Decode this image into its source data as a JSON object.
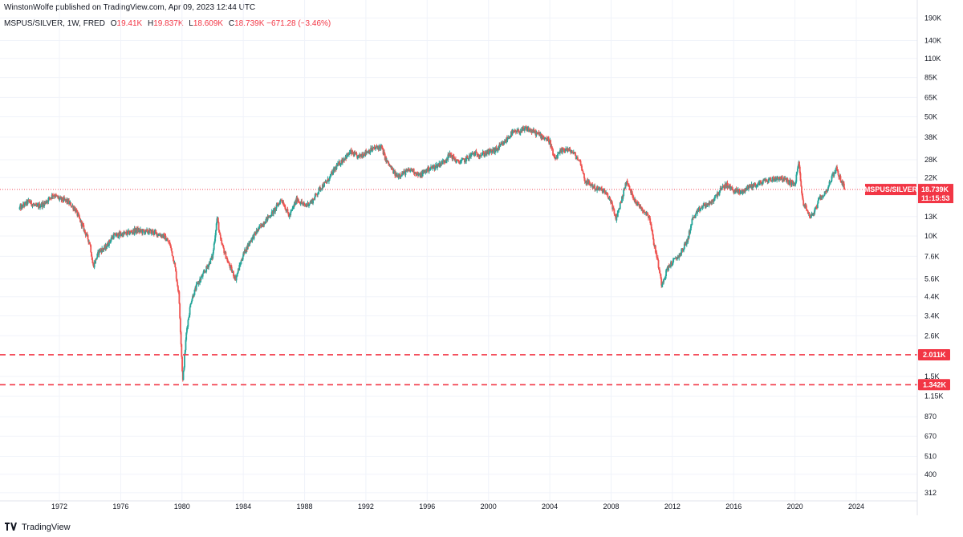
{
  "header": {
    "published_line": "WinstonWolfe published on TradingView.com, Apr 09, 2023 12:44 UTC"
  },
  "legend": {
    "symbol": "MSPUS/SILVER, 1W, FRED",
    "open_label": "O",
    "open_value": "19.41K",
    "high_label": "H",
    "high_value": "19.837K",
    "low_label": "L",
    "low_value": "18.609K",
    "close_label": "C",
    "close_value": "18.739K",
    "change": "−671.28 (−3.46%)"
  },
  "footer": {
    "brand": "TradingView",
    "logo_icon": "tradingview-logo-icon"
  },
  "colors": {
    "up": "#26a69a",
    "down": "#ef5350",
    "price_line": "#f23645",
    "grid": "#f0f3fa"
  },
  "chart_data": {
    "type": "candlestick",
    "title": "MSPUS/SILVER, 1W, FRED",
    "y_scale": "log",
    "x_range": [
      1969.3,
      2024.7
    ],
    "ylim": [
      290,
      195000
    ],
    "y_ticks": [
      {
        "value": 190000,
        "label": "190K"
      },
      {
        "value": 140000,
        "label": "140K"
      },
      {
        "value": 110000,
        "label": "110K"
      },
      {
        "value": 85000,
        "label": "85K"
      },
      {
        "value": 65000,
        "label": "65K"
      },
      {
        "value": 50000,
        "label": "50K"
      },
      {
        "value": 38000,
        "label": "38K"
      },
      {
        "value": 28000,
        "label": "28K"
      },
      {
        "value": 22000,
        "label": "22K"
      },
      {
        "value": 13000,
        "label": "13K"
      },
      {
        "value": 10000,
        "label": "10K"
      },
      {
        "value": 7600,
        "label": "7.6K"
      },
      {
        "value": 5600,
        "label": "5.6K"
      },
      {
        "value": 4400,
        "label": "4.4K"
      },
      {
        "value": 3400,
        "label": "3.4K"
      },
      {
        "value": 2600,
        "label": "2.6K"
      },
      {
        "value": 1500,
        "label": "1.5K"
      },
      {
        "value": 1150,
        "label": "1.15K"
      },
      {
        "value": 870,
        "label": "870"
      },
      {
        "value": 670,
        "label": "670"
      },
      {
        "value": 510,
        "label": "510"
      },
      {
        "value": 400,
        "label": "400"
      },
      {
        "value": 312,
        "label": "312"
      }
    ],
    "x_ticks": [
      "1972",
      "1976",
      "1980",
      "1984",
      "1988",
      "1992",
      "1996",
      "2000",
      "2004",
      "2008",
      "2012",
      "2016",
      "2020",
      "2024"
    ],
    "price_path": [
      [
        1969.4,
        14500
      ],
      [
        1970.0,
        16000
      ],
      [
        1970.5,
        14800
      ],
      [
        1971.0,
        15500
      ],
      [
        1971.6,
        17500
      ],
      [
        1972.0,
        16500
      ],
      [
        1972.5,
        16000
      ],
      [
        1973.0,
        14500
      ],
      [
        1973.5,
        11500
      ],
      [
        1974.0,
        9000
      ],
      [
        1974.2,
        6600
      ],
      [
        1974.6,
        8200
      ],
      [
        1975.0,
        8500
      ],
      [
        1975.5,
        10000
      ],
      [
        1976.0,
        10200
      ],
      [
        1976.5,
        10400
      ],
      [
        1977.0,
        10800
      ],
      [
        1977.5,
        10600
      ],
      [
        1978.0,
        10600
      ],
      [
        1978.4,
        10300
      ],
      [
        1978.8,
        10000
      ],
      [
        1979.2,
        9000
      ],
      [
        1979.5,
        7000
      ],
      [
        1979.8,
        4500
      ],
      [
        1980.05,
        1400
      ],
      [
        1980.3,
        2800
      ],
      [
        1980.6,
        4200
      ],
      [
        1981.0,
        5200
      ],
      [
        1981.5,
        6200
      ],
      [
        1982.0,
        7600
      ],
      [
        1982.3,
        13000
      ],
      [
        1982.5,
        9500
      ],
      [
        1983.0,
        7000
      ],
      [
        1983.5,
        5600
      ],
      [
        1984.0,
        7800
      ],
      [
        1984.5,
        9500
      ],
      [
        1985.0,
        11000
      ],
      [
        1985.5,
        12500
      ],
      [
        1986.0,
        14000
      ],
      [
        1986.5,
        16500
      ],
      [
        1987.0,
        13000
      ],
      [
        1987.5,
        16500
      ],
      [
        1988.0,
        15000
      ],
      [
        1988.5,
        16000
      ],
      [
        1989.0,
        19000
      ],
      [
        1989.5,
        21000
      ],
      [
        1990.0,
        25000
      ],
      [
        1990.5,
        28000
      ],
      [
        1991.0,
        31000
      ],
      [
        1991.5,
        29000
      ],
      [
        1992.0,
        31000
      ],
      [
        1992.5,
        32500
      ],
      [
        1993.0,
        33500
      ],
      [
        1993.3,
        28000
      ],
      [
        1993.7,
        24500
      ],
      [
        1994.0,
        22500
      ],
      [
        1994.5,
        23500
      ],
      [
        1995.0,
        24500
      ],
      [
        1995.5,
        22500
      ],
      [
        1996.0,
        24500
      ],
      [
        1996.5,
        25500
      ],
      [
        1997.0,
        27000
      ],
      [
        1997.5,
        30000
      ],
      [
        1998.0,
        27000
      ],
      [
        1998.5,
        28000
      ],
      [
        1999.0,
        30500
      ],
      [
        1999.5,
        30000
      ],
      [
        2000.0,
        31000
      ],
      [
        2000.5,
        32000
      ],
      [
        2001.0,
        35000
      ],
      [
        2001.5,
        40000
      ],
      [
        2002.0,
        41000
      ],
      [
        2002.5,
        42500
      ],
      [
        2003.0,
        40500
      ],
      [
        2003.5,
        38500
      ],
      [
        2004.0,
        36000
      ],
      [
        2004.3,
        28000
      ],
      [
        2004.7,
        31000
      ],
      [
        2005.0,
        32500
      ],
      [
        2005.5,
        31000
      ],
      [
        2006.0,
        27000
      ],
      [
        2006.3,
        21000
      ],
      [
        2006.7,
        20000
      ],
      [
        2007.0,
        19000
      ],
      [
        2007.5,
        18500
      ],
      [
        2008.0,
        16000
      ],
      [
        2008.3,
        12500
      ],
      [
        2008.7,
        16500
      ],
      [
        2009.0,
        21000
      ],
      [
        2009.3,
        18000
      ],
      [
        2009.7,
        15500
      ],
      [
        2010.0,
        14500
      ],
      [
        2010.5,
        13000
      ],
      [
        2010.8,
        9000
      ],
      [
        2011.0,
        7500
      ],
      [
        2011.3,
        5200
      ],
      [
        2011.7,
        6500
      ],
      [
        2012.0,
        7000
      ],
      [
        2012.5,
        7800
      ],
      [
        2013.0,
        9500
      ],
      [
        2013.3,
        12500
      ],
      [
        2013.7,
        14000
      ],
      [
        2014.0,
        15000
      ],
      [
        2014.5,
        15500
      ],
      [
        2015.0,
        18000
      ],
      [
        2015.5,
        20000
      ],
      [
        2016.0,
        18500
      ],
      [
        2016.5,
        18000
      ],
      [
        2017.0,
        19500
      ],
      [
        2017.5,
        20000
      ],
      [
        2018.0,
        21000
      ],
      [
        2018.5,
        21500
      ],
      [
        2019.0,
        22000
      ],
      [
        2019.5,
        21000
      ],
      [
        2020.0,
        20000
      ],
      [
        2020.25,
        27000
      ],
      [
        2020.5,
        16000
      ],
      [
        2020.8,
        14000
      ],
      [
        2021.0,
        13000
      ],
      [
        2021.3,
        14000
      ],
      [
        2021.6,
        16500
      ],
      [
        2022.0,
        18000
      ],
      [
        2022.4,
        22000
      ],
      [
        2022.7,
        25000
      ],
      [
        2022.9,
        22000
      ],
      [
        2023.1,
        20500
      ],
      [
        2023.27,
        18739
      ]
    ],
    "horizontal_lines": [
      {
        "value": 2011,
        "label": "2.011K",
        "style": "dashed"
      },
      {
        "value": 1342,
        "label": "1.342K",
        "style": "dashed"
      }
    ],
    "last_price": {
      "value": 18739,
      "label": "MSPUS/SILVER",
      "price_label": "18.739K",
      "countdown": "11:15:53"
    },
    "grid": true
  }
}
